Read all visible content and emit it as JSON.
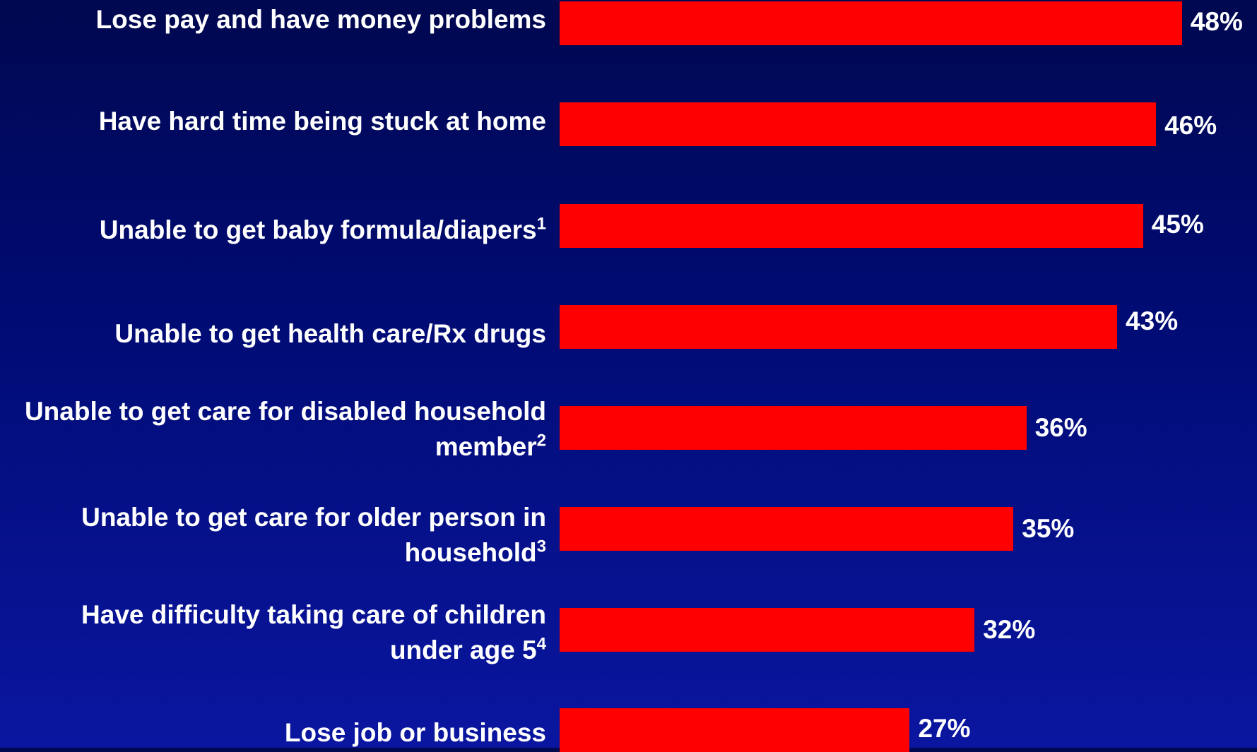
{
  "chart_data": {
    "type": "bar",
    "orientation": "horizontal",
    "categories": [
      {
        "text": "Lose pay and have money problems",
        "sup": ""
      },
      {
        "text": "Have hard time being stuck at home",
        "sup": ""
      },
      {
        "text": "Unable to get baby formula/diapers",
        "sup": "1"
      },
      {
        "text": "Unable to get health care/Rx drugs",
        "sup": ""
      },
      {
        "text": "Unable to get care for disabled household member",
        "sup": "2"
      },
      {
        "text": "Unable to get care for older person in household",
        "sup": "3"
      },
      {
        "text": "Have difficulty taking care of children under age 5",
        "sup": "4"
      },
      {
        "text": "Lose job or business",
        "sup": ""
      }
    ],
    "values": [
      48,
      46,
      45,
      43,
      36,
      35,
      32,
      27
    ],
    "value_labels": [
      "48%",
      "46%",
      "45%",
      "43%",
      "36%",
      "35%",
      "32%",
      "27%"
    ],
    "bar_color": "#ff0000",
    "grid": false,
    "legend": "none"
  }
}
